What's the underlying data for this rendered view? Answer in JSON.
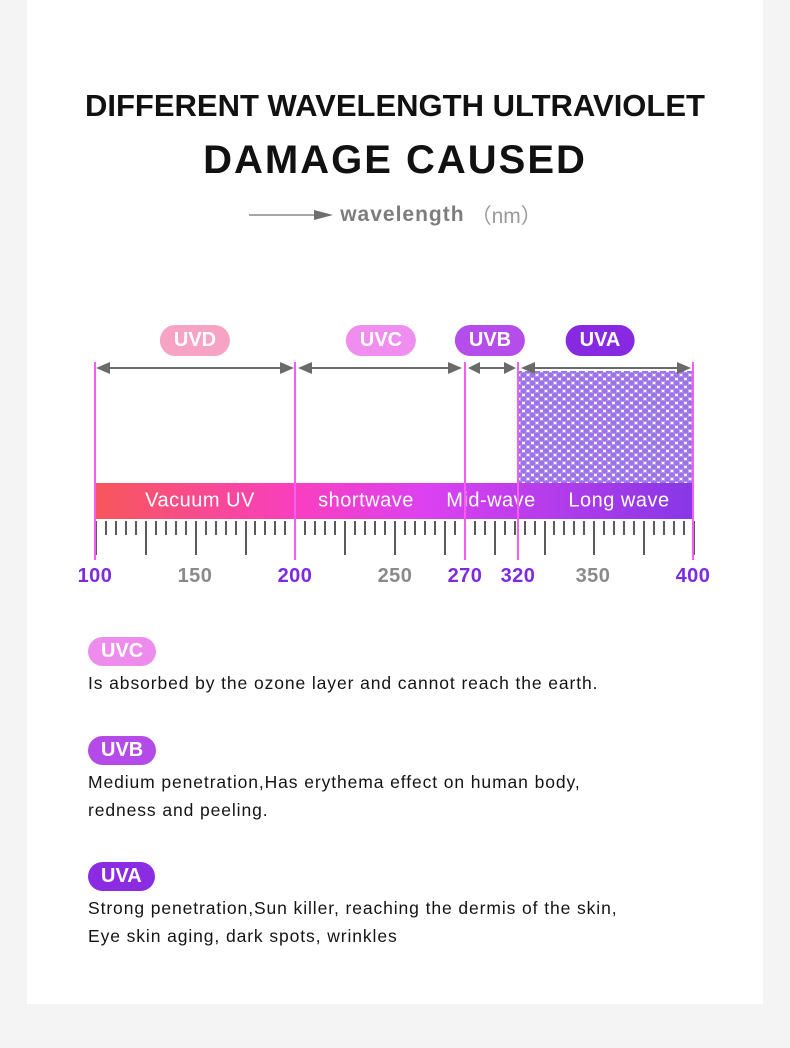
{
  "header": {
    "title_line1": "DIFFERENT WAVELENGTH ULTRAVIOLET",
    "title_line2": "DAMAGE CAUSED",
    "axis_label": "wavelength",
    "axis_unit": "（nm）"
  },
  "scale": {
    "bands": [
      {
        "badge": "UVD",
        "badge_color": "#f7a3c4",
        "bar_label": "Vacuum UV",
        "range_nm": [
          100,
          200
        ]
      },
      {
        "badge": "UVC",
        "badge_color": "#ef8eef",
        "bar_label": "shortwave",
        "range_nm": [
          200,
          270
        ]
      },
      {
        "badge": "UVB",
        "badge_color": "#b44de9",
        "bar_label": "Mid-wave",
        "range_nm": [
          270,
          320
        ]
      },
      {
        "badge": "UVA",
        "badge_color": "#8829e2",
        "bar_label": "Long wave",
        "range_nm": [
          320,
          400
        ]
      }
    ],
    "ticks": [
      {
        "label": "100",
        "color": "#7e2be0"
      },
      {
        "label": "150",
        "color": "#8a8a8a"
      },
      {
        "label": "200",
        "color": "#7e2be0"
      },
      {
        "label": "250",
        "color": "#8a8a8a"
      },
      {
        "label": "270",
        "color": "#7e2be0"
      },
      {
        "label": "320",
        "color": "#7e2be0"
      },
      {
        "label": "350",
        "color": "#8a8a8a"
      },
      {
        "label": "400",
        "color": "#7e2be0"
      }
    ]
  },
  "descriptions": [
    {
      "badge": "UVC",
      "badge_color": "#ee8cee",
      "lines": [
        "Is absorbed by the ozone layer and cannot reach the earth."
      ]
    },
    {
      "badge": "UVB",
      "badge_color": "#b44be8",
      "lines": [
        "Medium penetration,Has erythema effect on human body,",
        "redness and peeling."
      ]
    },
    {
      "badge": "UVA",
      "badge_color": "#8b2be2",
      "lines": [
        "Strong penetration,Sun killer, reaching the dermis of the skin,",
        "Eye skin aging, dark spots, wrinkles"
      ]
    }
  ]
}
